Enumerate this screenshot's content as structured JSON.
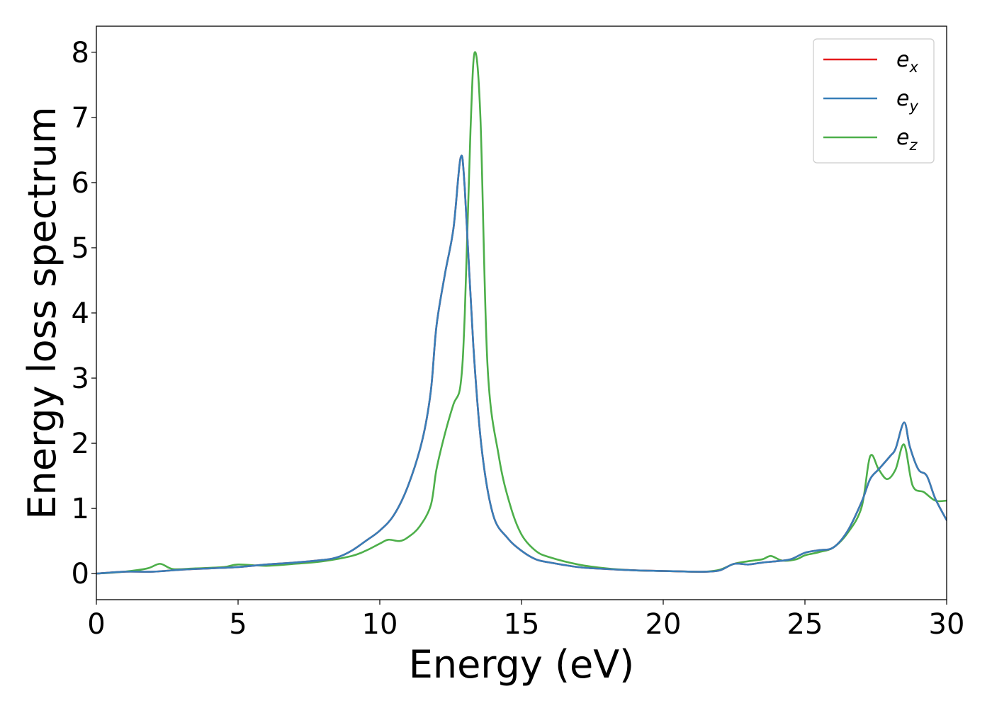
{
  "chart_data": {
    "type": "line",
    "xlabel": "Energy (eV)",
    "ylabel": "Energy loss spectrum",
    "xlim": [
      0,
      30
    ],
    "ylim": [
      -0.4,
      8.4
    ],
    "xticks": [
      0,
      5,
      10,
      15,
      20,
      25,
      30
    ],
    "yticks": [
      0,
      1,
      2,
      3,
      4,
      5,
      6,
      7,
      8
    ],
    "xtick_labels": [
      "0",
      "5",
      "10",
      "15",
      "20",
      "25",
      "30"
    ],
    "ytick_labels": [
      "0",
      "1",
      "2",
      "3",
      "4",
      "5",
      "6",
      "7",
      "8"
    ],
    "grid": false,
    "legend_position": "top-right",
    "series": [
      {
        "name": "e_x",
        "label_base": "e",
        "label_sub": "x",
        "color": "#e41a1c",
        "x": [
          0,
          1,
          2,
          3,
          4,
          5,
          6,
          7,
          8,
          8.5,
          9,
          9.5,
          10,
          10.5,
          11,
          11.5,
          11.8,
          12,
          12.3,
          12.6,
          12.85,
          13,
          13.3,
          13.6,
          14,
          14.5,
          15,
          15.5,
          16,
          17,
          18,
          19,
          20,
          21,
          21.5,
          22,
          22.5,
          23,
          23.5,
          24,
          24.5,
          25,
          25.5,
          26,
          26.5,
          27,
          27.3,
          27.6,
          28,
          28.2,
          28.5,
          28.7,
          29,
          29.3,
          29.6,
          30
        ],
        "y": [
          0,
          0.03,
          0.03,
          0.06,
          0.08,
          0.1,
          0.14,
          0.17,
          0.21,
          0.25,
          0.35,
          0.5,
          0.66,
          0.9,
          1.35,
          2.05,
          2.8,
          3.8,
          4.6,
          5.3,
          6.38,
          5.9,
          3.5,
          1.9,
          0.9,
          0.55,
          0.35,
          0.22,
          0.17,
          0.1,
          0.07,
          0.05,
          0.04,
          0.03,
          0.03,
          0.05,
          0.15,
          0.14,
          0.17,
          0.19,
          0.22,
          0.32,
          0.36,
          0.4,
          0.65,
          1.1,
          1.45,
          1.6,
          1.8,
          1.92,
          2.32,
          1.95,
          1.6,
          1.5,
          1.15,
          0.82
        ]
      },
      {
        "name": "e_y",
        "label_base": "e",
        "label_sub": "y",
        "color": "#377eb8",
        "x": [
          0,
          1,
          2,
          3,
          4,
          5,
          6,
          7,
          8,
          8.5,
          9,
          9.5,
          10,
          10.5,
          11,
          11.5,
          11.8,
          12,
          12.3,
          12.6,
          12.85,
          13,
          13.3,
          13.6,
          14,
          14.5,
          15,
          15.5,
          16,
          17,
          18,
          19,
          20,
          21,
          21.5,
          22,
          22.5,
          23,
          23.5,
          24,
          24.5,
          25,
          25.5,
          26,
          26.5,
          27,
          27.3,
          27.6,
          28,
          28.2,
          28.5,
          28.7,
          29,
          29.3,
          29.6,
          30
        ],
        "y": [
          0,
          0.03,
          0.03,
          0.06,
          0.08,
          0.1,
          0.14,
          0.17,
          0.21,
          0.25,
          0.35,
          0.5,
          0.66,
          0.9,
          1.35,
          2.05,
          2.8,
          3.8,
          4.6,
          5.3,
          6.38,
          5.9,
          3.5,
          1.9,
          0.9,
          0.55,
          0.35,
          0.22,
          0.17,
          0.1,
          0.07,
          0.05,
          0.04,
          0.03,
          0.03,
          0.05,
          0.15,
          0.14,
          0.17,
          0.19,
          0.22,
          0.32,
          0.36,
          0.4,
          0.65,
          1.1,
          1.45,
          1.6,
          1.8,
          1.92,
          2.32,
          1.95,
          1.6,
          1.5,
          1.15,
          0.82
        ]
      },
      {
        "name": "e_z",
        "label_base": "e",
        "label_sub": "z",
        "color": "#4daf4a",
        "x": [
          0,
          1,
          1.8,
          2.25,
          2.7,
          3.5,
          4.5,
          5,
          6,
          7,
          8,
          9,
          9.5,
          10,
          10.3,
          10.7,
          11,
          11.4,
          11.8,
          12,
          12.3,
          12.6,
          12.85,
          13.0,
          13.2,
          13.35,
          13.55,
          13.8,
          14.2,
          14.6,
          15,
          15.5,
          16,
          17,
          18,
          19,
          20,
          21,
          21.5,
          22,
          22.5,
          23,
          23.5,
          23.8,
          24.2,
          24.7,
          25,
          25.5,
          26,
          26.5,
          27,
          27.3,
          27.6,
          27.9,
          28.2,
          28.5,
          28.8,
          29.2,
          29.6,
          30
        ],
        "y": [
          0,
          0.03,
          0.08,
          0.15,
          0.07,
          0.08,
          0.1,
          0.14,
          0.12,
          0.15,
          0.19,
          0.27,
          0.35,
          0.46,
          0.52,
          0.5,
          0.56,
          0.72,
          1.05,
          1.6,
          2.15,
          2.6,
          2.9,
          4.0,
          6.8,
          8.0,
          7.0,
          3.2,
          1.8,
          1.05,
          0.6,
          0.35,
          0.25,
          0.14,
          0.08,
          0.05,
          0.04,
          0.03,
          0.03,
          0.06,
          0.15,
          0.19,
          0.22,
          0.27,
          0.2,
          0.22,
          0.28,
          0.33,
          0.4,
          0.62,
          1.02,
          1.8,
          1.6,
          1.45,
          1.6,
          1.98,
          1.35,
          1.25,
          1.12,
          1.12
        ]
      }
    ]
  }
}
